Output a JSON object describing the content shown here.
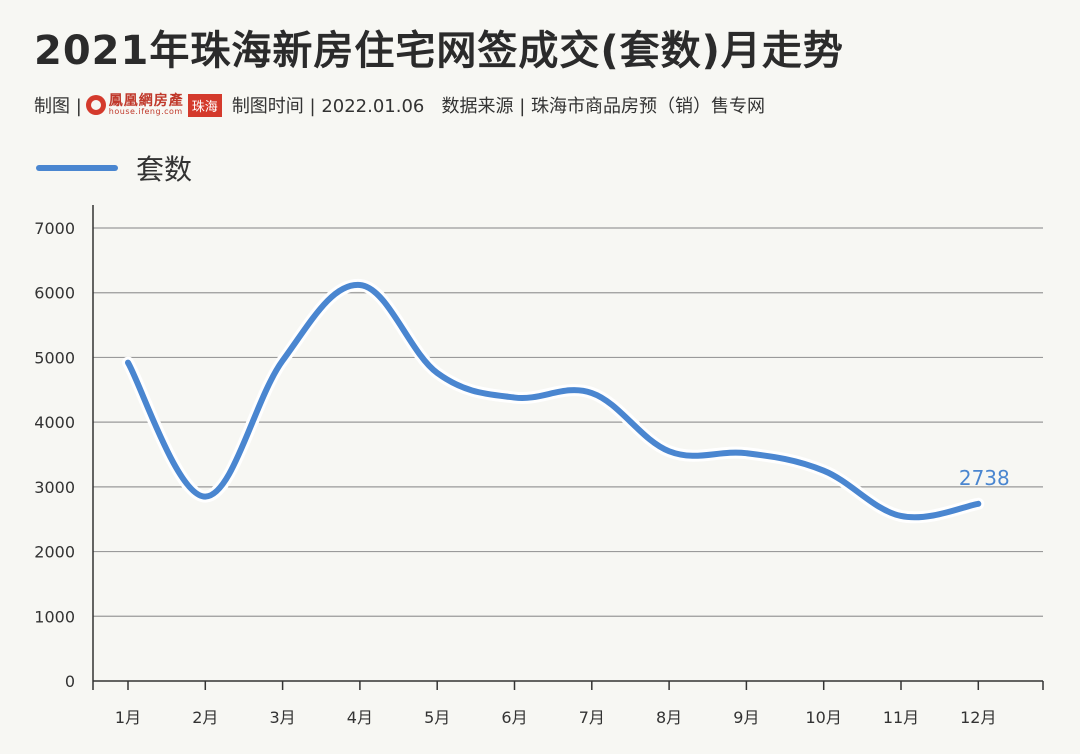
{
  "header": {
    "title": "2021年珠海新房住宅网签成交(套数)月走势",
    "meta_prefix": "制图 |",
    "logo_name": "鳳凰網房產",
    "logo_sub": "house.ifeng.com",
    "logo_city": "珠海",
    "meta_rest": "制图时间 | 2022.01.06   数据来源 | 珠海市商品房预（销）售专网"
  },
  "colors": {
    "line": "#4a86d0",
    "grid": "#9a9a9a",
    "axis": "#333333",
    "logo": "#d43a2c"
  },
  "chart_data": {
    "type": "line",
    "title": "2021年珠海新房住宅网签成交(套数)月走势",
    "xlabel": "",
    "ylabel": "",
    "categories": [
      "1月",
      "2月",
      "3月",
      "4月",
      "5月",
      "6月",
      "7月",
      "8月",
      "9月",
      "10月",
      "11月",
      "12月"
    ],
    "series": [
      {
        "name": "套数",
        "values": [
          4920,
          2850,
          4950,
          6120,
          4760,
          4380,
          4450,
          3550,
          3520,
          3250,
          2550,
          2738
        ]
      }
    ],
    "yticks": [
      "0",
      "1000",
      "2000",
      "3000",
      "4000",
      "5000",
      "6000",
      "7000"
    ],
    "ylim": [
      0,
      7000
    ],
    "grid": true,
    "legend": "top-left",
    "point_label": {
      "index": 11,
      "text": "2738"
    }
  }
}
